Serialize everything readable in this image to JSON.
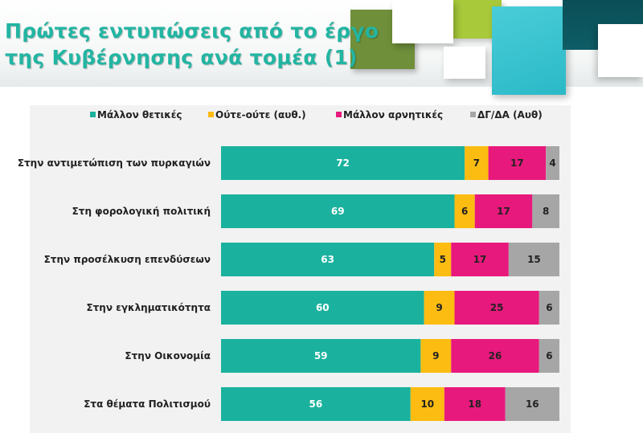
{
  "title_lines": [
    "Πρώτες εντυπώσεις από το έργο",
    "της Κυβέρνησης ανά τομέα (1)"
  ],
  "colors": {
    "title": "#22b5a2",
    "decor": [
      "#6f8f3a",
      "#a7c93a",
      "#2bb9c7",
      "#0e5d66",
      "#ffffff"
    ]
  },
  "chart_data": {
    "type": "bar",
    "orientation": "horizontal",
    "stacked": true,
    "percent_stacked": true,
    "legend_position": "top",
    "grid": false,
    "categories": [
      "Στην αντιμετώπιση των πυρκαγιών",
      "Στη φορολογική πολιτική",
      "Στην προσέλκυση επενδύσεων",
      "Στην εγκληματικότητα",
      "Στην Οικονομία",
      "Στα θέματα Πολιτισμού"
    ],
    "series": [
      {
        "name": "Μάλλον θετικές",
        "color": "#1ab29e",
        "label_color": "#ffffff",
        "values": [
          72,
          69,
          63,
          60,
          59,
          56
        ]
      },
      {
        "name": "Ούτε-ούτε  (αυθ.)",
        "color": "#fcbc11",
        "label_color": "#222222",
        "values": [
          7,
          6,
          5,
          9,
          9,
          10
        ]
      },
      {
        "name": "Μάλλον αρνητικές",
        "color": "#e8197c",
        "label_color": "#222222",
        "values": [
          17,
          17,
          17,
          25,
          26,
          18
        ]
      },
      {
        "name": "ΔΓ/ΔΑ (Αυθ)",
        "color": "#a6a6a6",
        "label_color": "#222222",
        "values": [
          4,
          8,
          15,
          6,
          6,
          16
        ]
      }
    ]
  }
}
